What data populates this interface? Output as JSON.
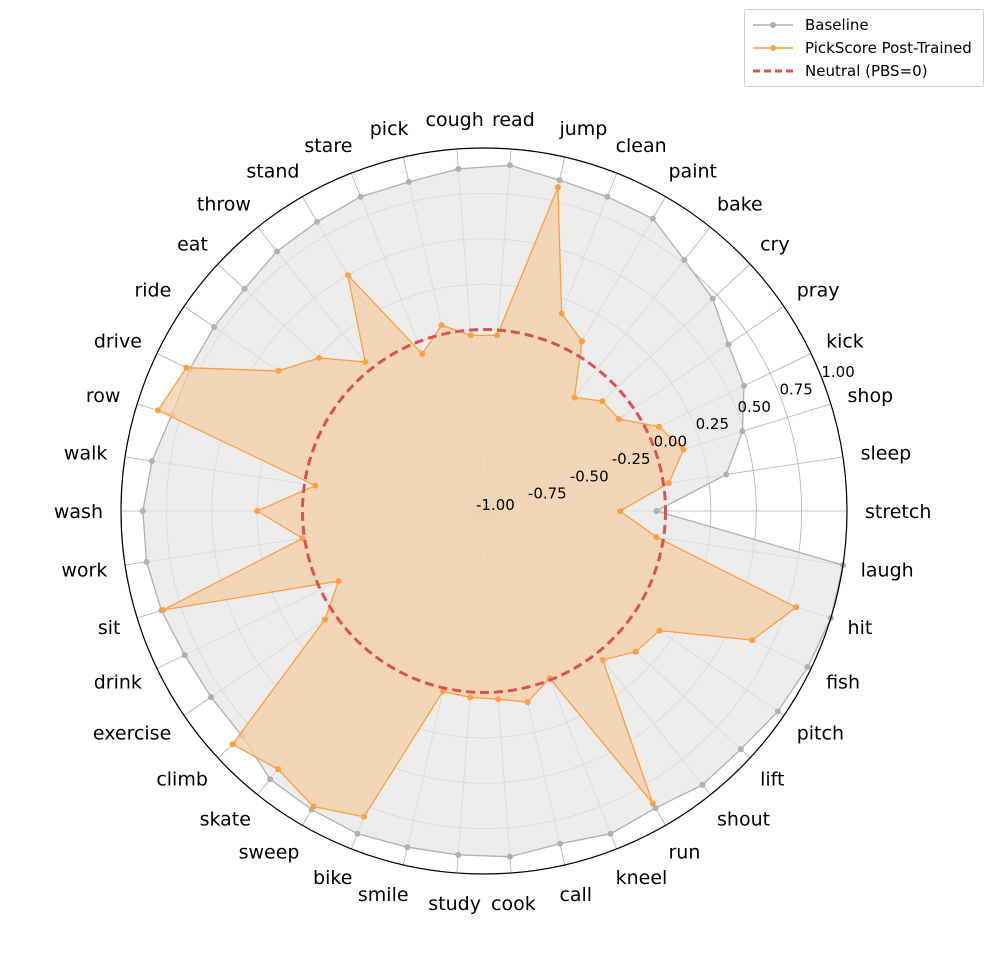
{
  "chart_data": {
    "type": "radar",
    "categories": [
      "stretch",
      "sleep",
      "shop",
      "kick",
      "pray",
      "cry",
      "bake",
      "paint",
      "clean",
      "jump",
      "read",
      "cough",
      "pick",
      "stare",
      "stand",
      "throw",
      "eat",
      "ride",
      "drive",
      "row",
      "walk",
      "wash",
      "work",
      "sit",
      "drink",
      "exercise",
      "climb",
      "skate",
      "sweep",
      "bike",
      "smile",
      "study",
      "cook",
      "call",
      "kneel",
      "run",
      "shout",
      "lift",
      "pitch",
      "fish",
      "hit",
      "laugh"
    ],
    "rlim": [
      -1.0,
      1.0
    ],
    "rticks": [
      -1.0,
      -0.75,
      -0.5,
      -0.25,
      0.0,
      0.25,
      0.5,
      0.75,
      1.0
    ],
    "rtick_labels": [
      "-1.00",
      "-0.75",
      "-0.50",
      "-0.25",
      "0.00",
      "0.25",
      "0.50",
      "0.75",
      "1.00"
    ],
    "series": [
      {
        "name": "Baseline",
        "color": "#b0b0b0",
        "fill": "#e6e6e6",
        "values": [
          -0.05,
          0.35,
          0.49,
          0.59,
          0.63,
          0.72,
          0.77,
          0.86,
          0.86,
          0.87,
          0.91,
          0.89,
          0.86,
          0.86,
          0.84,
          0.83,
          0.8,
          0.8,
          0.8,
          0.8,
          0.85,
          0.88,
          0.88,
          0.86,
          0.83,
          0.82,
          0.82,
          0.89,
          0.9,
          0.91,
          0.9,
          0.9,
          0.91,
          0.88,
          0.91,
          0.89,
          0.93,
          0.93,
          0.96,
          0.98,
          1.0,
          1.0
        ]
      },
      {
        "name": "PickScore Post-Trained",
        "color": "#ff9f3f",
        "fill": "#f5cfa5",
        "values": [
          -0.25,
          0.03,
          0.15,
          0.07,
          -0.1,
          -0.11,
          -0.2,
          0.08,
          0.17,
          0.83,
          -0.03,
          -0.03,
          0.05,
          -0.07,
          0.5,
          0.05,
          0.24,
          0.37,
          0.82,
          0.88,
          -0.06,
          0.25,
          0.01,
          0.85,
          -0.11,
          0.06,
          0.89,
          0.82,
          0.88,
          0.81,
          0.02,
          0.03,
          0.04,
          0.08,
          -0.01,
          0.86,
          0.05,
          0.14,
          0.17,
          0.64,
          0.8,
          -0.04
        ]
      },
      {
        "name": "Neutral (PBS=0)",
        "color": "#d9534f",
        "dashed": true,
        "value": 0.0
      }
    ]
  },
  "legend": {
    "items": [
      {
        "label": "Baseline",
        "color": "#b0b0b0",
        "style": "line-marker"
      },
      {
        "label": "PickScore Post-Trained",
        "color": "#ff9f3f",
        "style": "line-marker"
      },
      {
        "label": "Neutral (PBS=0)",
        "color": "#d9534f",
        "style": "dashed"
      }
    ]
  }
}
